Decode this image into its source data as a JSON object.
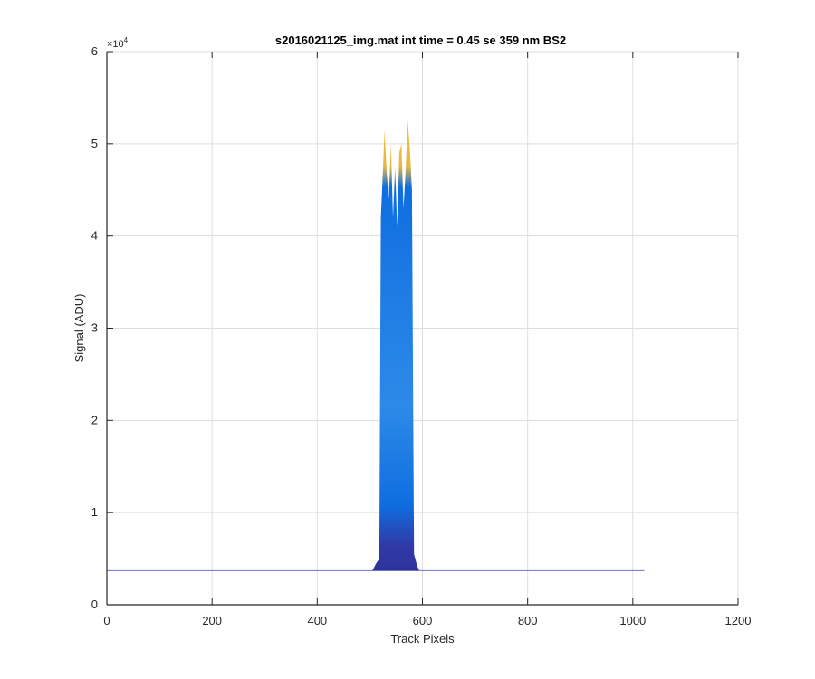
{
  "chart_data": {
    "type": "area",
    "title": "s2016021125_img.mat int time = 0.45 se  359 nm BS2",
    "xlabel": "Track Pixels",
    "ylabel": "Signal (ADU)",
    "xlim": [
      0,
      1200
    ],
    "ylim": [
      0,
      60000
    ],
    "x_ticks": [
      0,
      200,
      400,
      600,
      800,
      1000,
      1200
    ],
    "x_tick_labels": [
      "0",
      "200",
      "400",
      "600",
      "800",
      "1000",
      "1200"
    ],
    "y_ticks": [
      0,
      10000,
      20000,
      30000,
      40000,
      50000,
      60000
    ],
    "y_tick_labels": [
      "0",
      "1",
      "2",
      "3",
      "4",
      "5",
      "6"
    ],
    "y_exponent_label": "×10",
    "y_exponent_power": "4",
    "grid": true,
    "baseline": {
      "x_start": 0,
      "x_end": 1022,
      "value": 3700
    },
    "series": [
      {
        "x": [
          505,
          512,
          518,
          521,
          524,
          528,
          532,
          536,
          540,
          544,
          548,
          552,
          556,
          560,
          564,
          568,
          572,
          576,
          580,
          584,
          590,
          594
        ],
        "y": [
          3700,
          4500,
          5000,
          42000,
          46000,
          51500,
          47000,
          44000,
          50000,
          42000,
          47500,
          41000,
          49000,
          50000,
          43000,
          47000,
          52500,
          49500,
          45000,
          5500,
          4200,
          3700
        ]
      }
    ],
    "colors": {
      "peak": "#f2c13a",
      "upper": "#e8b840",
      "body": "#0f6ee0",
      "body_light": "#2d8ae8",
      "lower": "#2f3aa8",
      "base": "#2a2a88",
      "baseline": "#6f73c8",
      "grid": "#dedede",
      "axis": "#262626"
    }
  }
}
